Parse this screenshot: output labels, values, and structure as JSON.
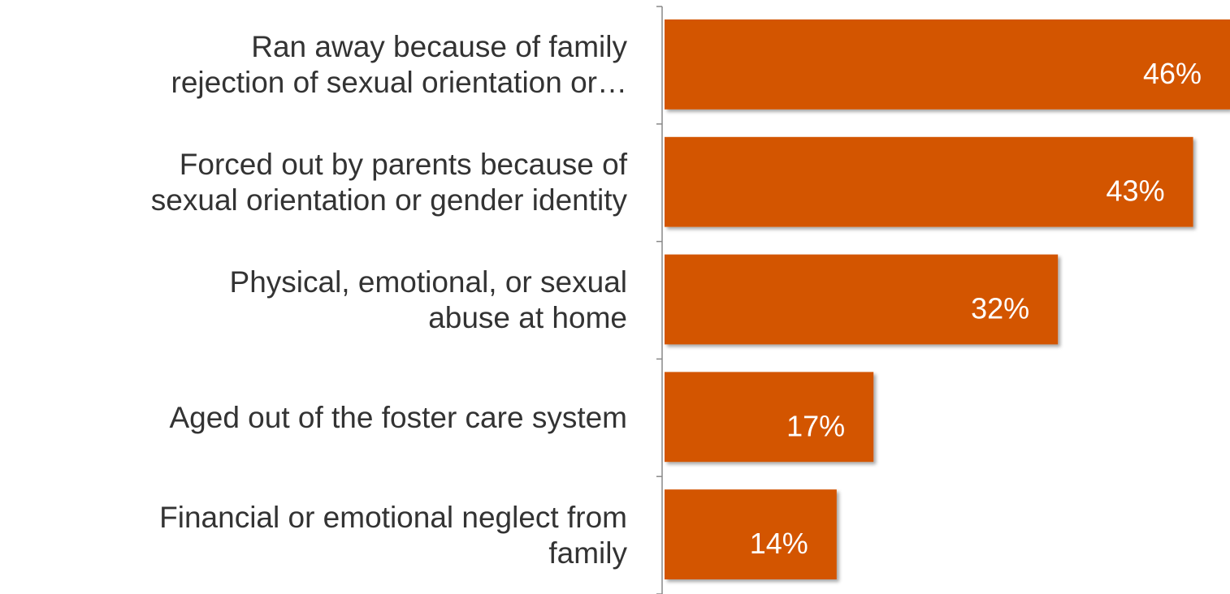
{
  "chart_data": {
    "type": "hbar",
    "categories": [
      "Ran away because of family\nrejection of sexual orientation or…",
      "Forced out by parents because of\nsexual orientation or gender identity",
      "Physical, emotional, or sexual\nabuse at home",
      "Aged out of the foster care system",
      "Financial or emotional neglect from\nfamily"
    ],
    "values": [
      46,
      43,
      32,
      17,
      14
    ],
    "value_labels": [
      "46%",
      "43%",
      "32%",
      "17%",
      "14%"
    ],
    "color": "#d35400",
    "xlim": [
      0,
      46
    ]
  }
}
